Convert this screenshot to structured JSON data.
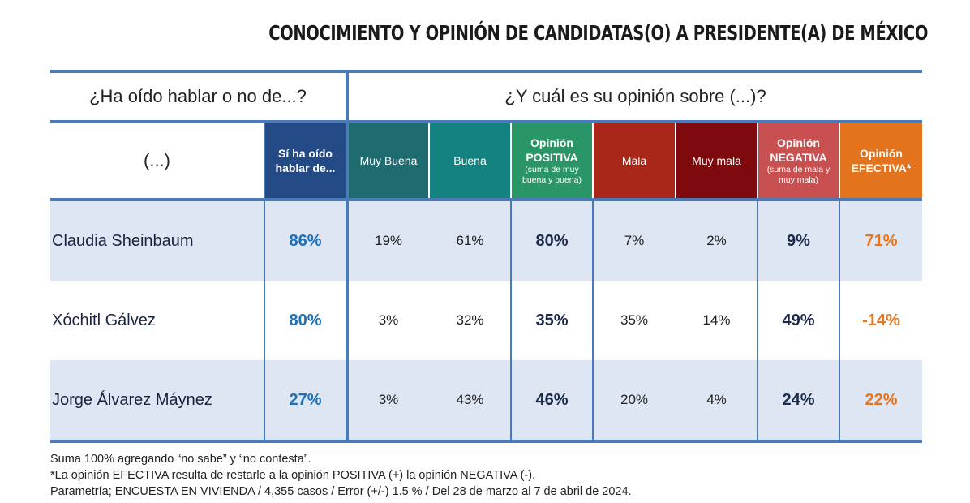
{
  "title": "CONOCIMIENTO Y OPINIÓN DE CANDIDATAS(O) A PRESIDENTE(A) DE MÉXICO",
  "question_left": "¿Ha oído hablar o no de...?",
  "question_right": "¿Y cuál es su opinión sobre (...)?",
  "headers": {
    "name": "(...)",
    "known": [
      "Sí ha oído",
      "hablar de..."
    ],
    "muy_buena": "Muy Buena",
    "buena": "Buena",
    "positiva": [
      "Opinión",
      "POSITIVA",
      "(suma de muy",
      "buena y buena)"
    ],
    "mala": "Mala",
    "muy_mala": "Muy mala",
    "negativa": [
      "Opinión",
      "NEGATIVA",
      "(suma de mala y",
      "muy mala)"
    ],
    "efectiva": [
      "Opinión",
      "EFECTIVA*"
    ]
  },
  "colors": {
    "rule": "#4a7ab8",
    "known": "#234a84",
    "muy_buena": "#1e6b70",
    "buena": "#14827f",
    "positiva": "#2a9566",
    "mala": "#a82719",
    "muy_mala": "#7e0a0d",
    "negativa": "#c95050",
    "efectiva": "#e3731c",
    "row_shade": "#dde6f2"
  },
  "chart_data": {
    "type": "table",
    "columns": [
      "(...)",
      "Sí ha oído hablar de...",
      "Muy Buena",
      "Buena",
      "Opinión POSITIVA",
      "Mala",
      "Muy mala",
      "Opinión NEGATIVA",
      "Opinión EFECTIVA*"
    ],
    "rows": [
      {
        "name": "Claudia Sheinbaum",
        "known": "86%",
        "muy_buena": "19%",
        "buena": "61%",
        "positiva": "80%",
        "mala": "7%",
        "muy_mala": "2%",
        "negativa": "9%",
        "efectiva": "71%"
      },
      {
        "name": "Xóchitl Gálvez",
        "known": "80%",
        "muy_buena": "3%",
        "buena": "32%",
        "positiva": "35%",
        "mala": "35%",
        "muy_mala": "14%",
        "negativa": "49%",
        "efectiva": "-14%"
      },
      {
        "name": "Jorge Álvarez Máynez",
        "known": "27%",
        "muy_buena": "3%",
        "buena": "43%",
        "positiva": "46%",
        "mala": "20%",
        "muy_mala": "4%",
        "negativa": "24%",
        "efectiva": "22%"
      }
    ]
  },
  "notes": [
    "Suma 100% agregando “no sabe” y “no contesta”.",
    "*La opinión EFECTIVA resulta de restarle a la opinión POSITIVA (+) la opinión NEGATIVA (-).",
    "Parametría; ENCUESTA EN VIVIENDA / 4,355 casos / Error (+/-) 1.5 % / Del 28 de marzo al 7 de abril de 2024."
  ]
}
